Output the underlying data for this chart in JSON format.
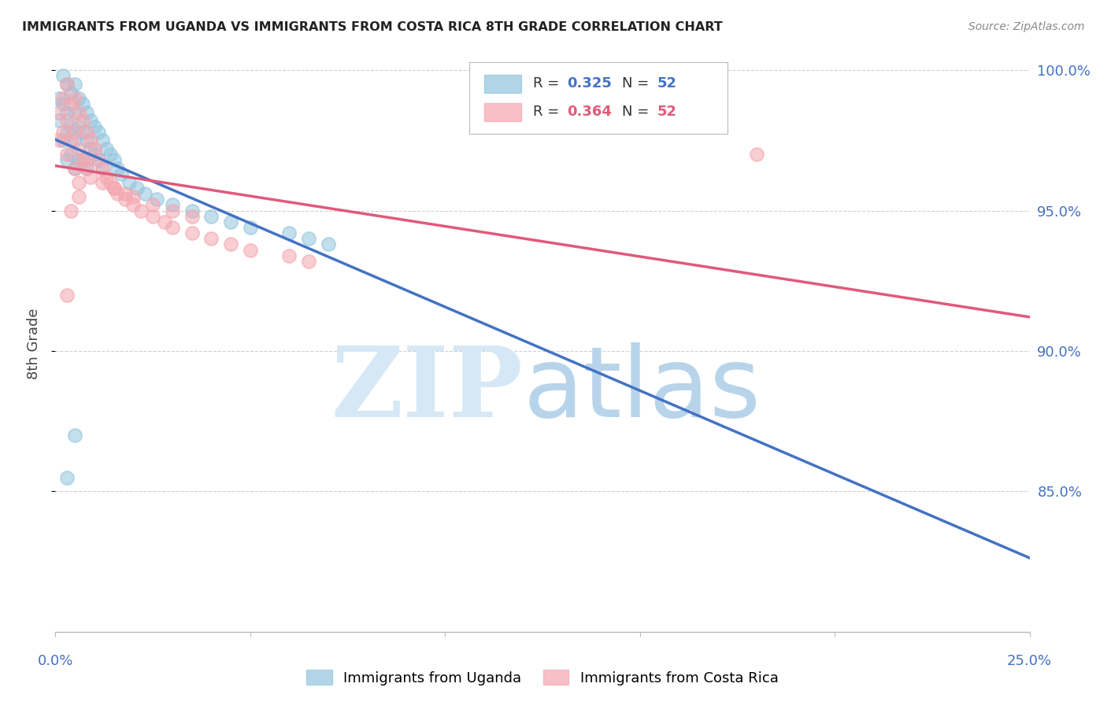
{
  "title": "IMMIGRANTS FROM UGANDA VS IMMIGRANTS FROM COSTA RICA 8TH GRADE CORRELATION CHART",
  "source": "Source: ZipAtlas.com",
  "ylabel": "8th Grade",
  "xlim": [
    0.0,
    0.25
  ],
  "ylim": [
    0.8,
    1.005
  ],
  "uganda_color": "#92c5de",
  "costarica_color": "#f4a6b0",
  "uganda_line_color": "#4472c4",
  "costarica_line_color": "#e05a7a",
  "grid_color": "#d0d0d0",
  "background_color": "#ffffff",
  "uganda_x": [
    0.001,
    0.001,
    0.002,
    0.002,
    0.002,
    0.003,
    0.003,
    0.003,
    0.003,
    0.004,
    0.004,
    0.004,
    0.005,
    0.005,
    0.005,
    0.005,
    0.006,
    0.006,
    0.006,
    0.007,
    0.007,
    0.007,
    0.008,
    0.008,
    0.008,
    0.009,
    0.009,
    0.01,
    0.01,
    0.011,
    0.011,
    0.012,
    0.012,
    0.013,
    0.014,
    0.015,
    0.016,
    0.017,
    0.019,
    0.021,
    0.023,
    0.026,
    0.03,
    0.035,
    0.04,
    0.045,
    0.05,
    0.06,
    0.065,
    0.07,
    0.005,
    0.003
  ],
  "uganda_y": [
    0.99,
    0.982,
    0.998,
    0.988,
    0.975,
    0.995,
    0.985,
    0.978,
    0.968,
    0.992,
    0.98,
    0.97,
    0.995,
    0.985,
    0.975,
    0.965,
    0.99,
    0.98,
    0.968,
    0.988,
    0.978,
    0.968,
    0.985,
    0.975,
    0.965,
    0.982,
    0.972,
    0.98,
    0.97,
    0.978,
    0.968,
    0.975,
    0.965,
    0.972,
    0.97,
    0.968,
    0.965,
    0.963,
    0.96,
    0.958,
    0.956,
    0.954,
    0.952,
    0.95,
    0.948,
    0.946,
    0.944,
    0.942,
    0.94,
    0.938,
    0.87,
    0.855
  ],
  "costarica_x": [
    0.001,
    0.001,
    0.002,
    0.002,
    0.003,
    0.003,
    0.003,
    0.004,
    0.004,
    0.005,
    0.005,
    0.005,
    0.006,
    0.006,
    0.006,
    0.007,
    0.007,
    0.008,
    0.008,
    0.009,
    0.009,
    0.01,
    0.011,
    0.012,
    0.013,
    0.014,
    0.015,
    0.016,
    0.018,
    0.02,
    0.022,
    0.025,
    0.028,
    0.03,
    0.035,
    0.04,
    0.045,
    0.05,
    0.06,
    0.065,
    0.02,
    0.025,
    0.03,
    0.035,
    0.012,
    0.015,
    0.018,
    0.008,
    0.006,
    0.004,
    0.18,
    0.003
  ],
  "costarica_y": [
    0.985,
    0.975,
    0.99,
    0.978,
    0.995,
    0.982,
    0.97,
    0.988,
    0.975,
    0.99,
    0.978,
    0.965,
    0.985,
    0.972,
    0.96,
    0.982,
    0.968,
    0.978,
    0.965,
    0.975,
    0.962,
    0.972,
    0.968,
    0.965,
    0.962,
    0.96,
    0.958,
    0.956,
    0.954,
    0.952,
    0.95,
    0.948,
    0.946,
    0.944,
    0.942,
    0.94,
    0.938,
    0.936,
    0.934,
    0.932,
    0.955,
    0.952,
    0.95,
    0.948,
    0.96,
    0.958,
    0.956,
    0.968,
    0.955,
    0.95,
    0.97,
    0.92
  ],
  "y_ticks": [
    1.0,
    0.95,
    0.9,
    0.85
  ],
  "y_tick_labels": [
    "100.0%",
    "95.0%",
    "90.0%",
    "85.0%"
  ],
  "x_tick_labels_left": "0.0%",
  "x_tick_labels_right": "25.0%",
  "legend_uganda_R": "R = 0.325",
  "legend_uganda_N": "N = 52",
  "legend_cr_R": "R = 0.364",
  "legend_cr_N": "N = 52",
  "watermark_zip": "ZIP",
  "watermark_atlas": "atlas"
}
